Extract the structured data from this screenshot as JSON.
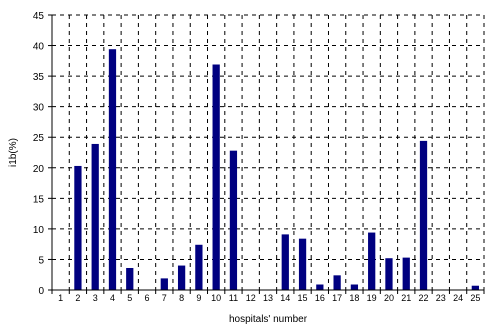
{
  "chart_data": {
    "type": "bar",
    "title": "",
    "xlabel": "hospitals' number",
    "ylabel": "i1b(%)",
    "categories": [
      "1",
      "2",
      "3",
      "4",
      "5",
      "6",
      "7",
      "8",
      "9",
      "10",
      "11",
      "12",
      "13",
      "14",
      "15",
      "16",
      "17",
      "18",
      "19",
      "20",
      "21",
      "22",
      "23",
      "24",
      "25"
    ],
    "values": [
      0,
      20.3,
      23.9,
      39.4,
      3.6,
      0,
      1.9,
      4.0,
      7.4,
      36.9,
      22.8,
      0,
      0,
      9.1,
      8.4,
      0.9,
      2.4,
      0.9,
      9.4,
      5.2,
      5.3,
      24.4,
      0,
      0,
      0.7
    ],
    "ylim": [
      0,
      45
    ],
    "yticks": [
      0,
      5,
      10,
      15,
      20,
      25,
      30,
      35,
      40,
      45
    ],
    "grid": true,
    "bar_color": "#000080",
    "legend": "none"
  }
}
